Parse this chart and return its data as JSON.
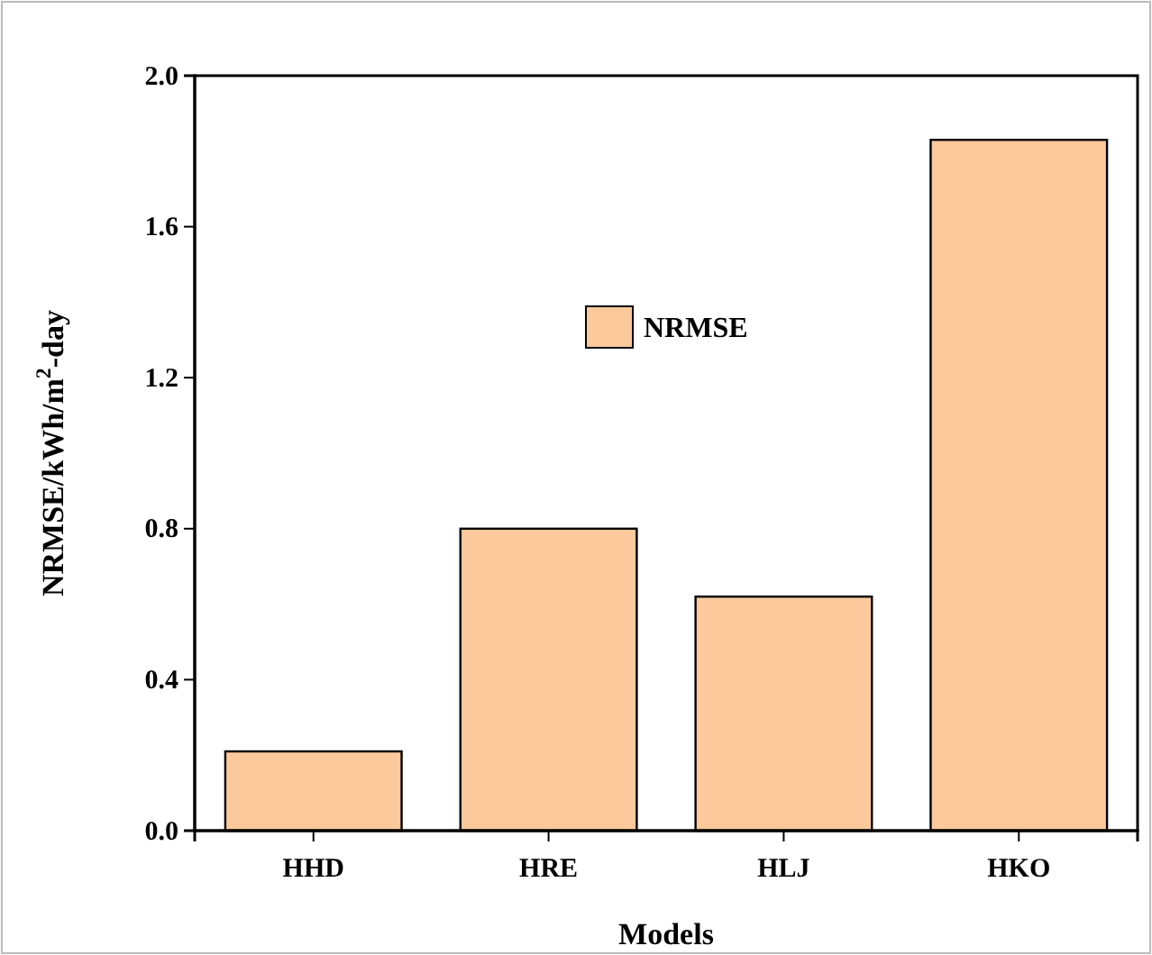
{
  "chart_data": {
    "type": "bar",
    "xlabel": "Models",
    "ylabel": "NRMSE/kWh/m$^{2}$-day",
    "categories": [
      "HHD",
      "HRE",
      "HLJ",
      "HKO"
    ],
    "series": [
      {
        "name": "NRMSE",
        "color": "#fbc99b",
        "values": [
          0.21,
          0.8,
          0.62,
          1.83
        ]
      }
    ],
    "ylim": [
      0,
      2
    ],
    "yticks": [
      {
        "value": 0,
        "label": "0.0"
      },
      0.4,
      0.8,
      1.2,
      1.6,
      {
        "value": 2,
        "label": "2.0"
      }
    ],
    "legend": "top",
    "grid": false
  }
}
